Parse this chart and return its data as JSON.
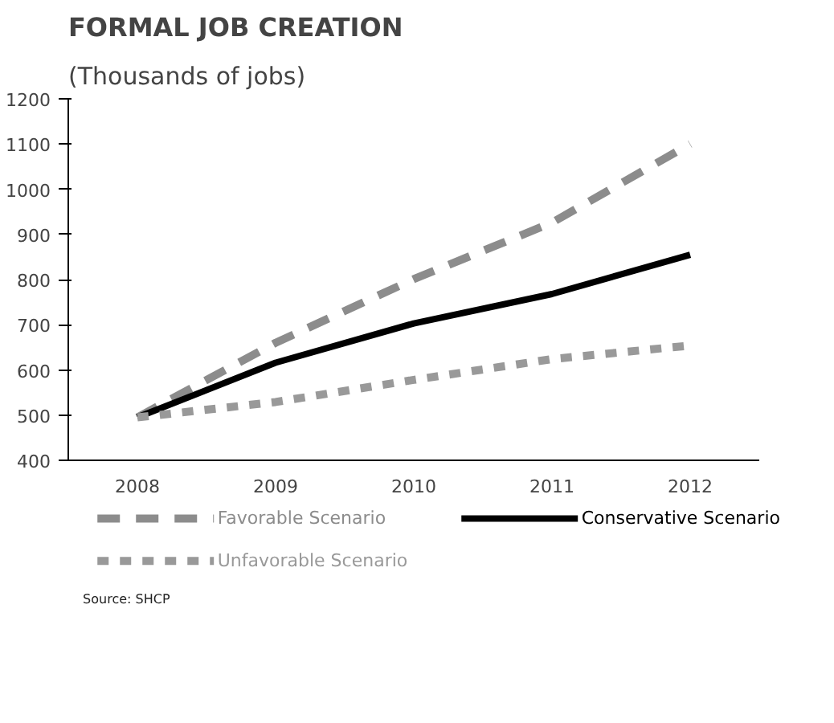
{
  "chart_data": {
    "type": "line",
    "title": "FORMAL JOB CREATION",
    "subtitle": "(Thousands of jobs)",
    "categories": [
      "2008",
      "2009",
      "2010",
      "2011",
      "2012"
    ],
    "series": [
      {
        "name": "Favorable Scenario",
        "color": "#8c8c8c",
        "line_style": "dashed",
        "values": [
          495,
          660,
          801,
          926,
          1100
        ]
      },
      {
        "name": "Conservative Scenario",
        "color": "#000000",
        "line_style": "solid",
        "values": [
          495,
          616,
          703,
          768,
          855
        ]
      },
      {
        "name": "Unfavorable Scenario",
        "color": "#999999",
        "line_style": "dotted",
        "values": [
          495,
          529,
          578,
          624,
          654
        ]
      }
    ],
    "ylim": [
      400,
      1200
    ],
    "yticks": [
      400,
      500,
      600,
      700,
      800,
      900,
      1000,
      1100,
      1200
    ],
    "grid": false,
    "legend": "bottom",
    "marker": "none",
    "annotations": [
      "Source:  SHCP"
    ]
  }
}
